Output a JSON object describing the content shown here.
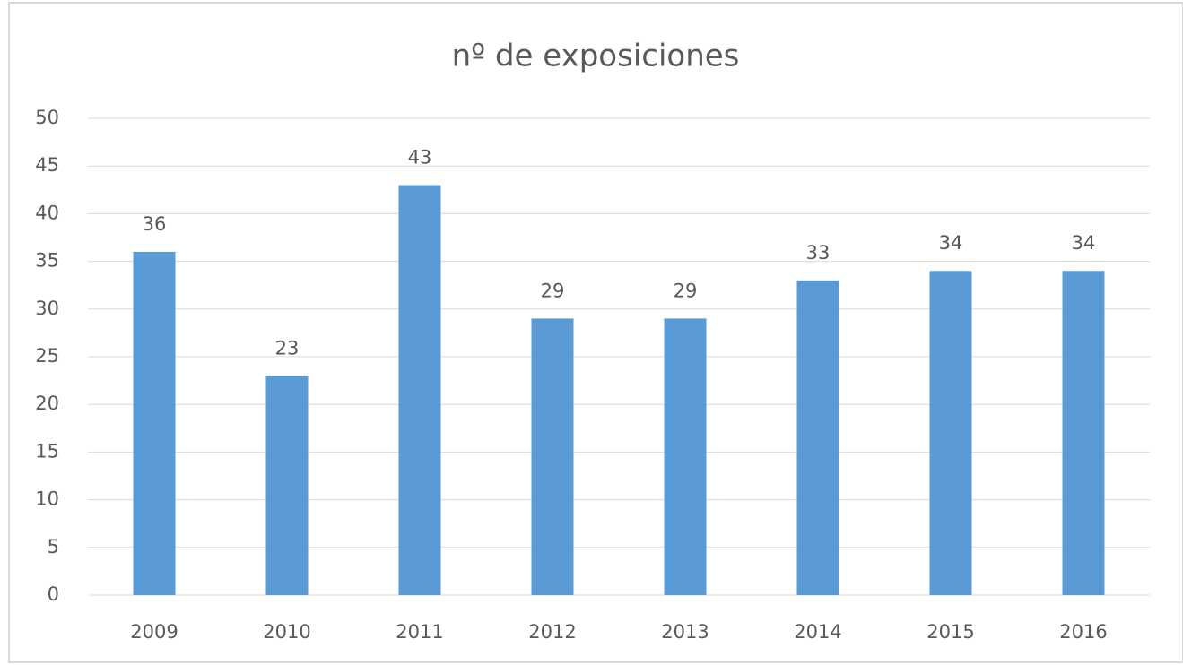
{
  "chart_data": {
    "type": "bar",
    "title": "nº de exposiciones",
    "categories": [
      "2009",
      "2010",
      "2011",
      "2012",
      "2013",
      "2014",
      "2015",
      "2016"
    ],
    "values": [
      36,
      23,
      43,
      29,
      29,
      33,
      34,
      34
    ],
    "color": "#5b9bd5",
    "ylim": [
      0,
      50
    ],
    "yticks": [
      0,
      5,
      10,
      15,
      20,
      25,
      30,
      35,
      40,
      45,
      50
    ],
    "grid": true,
    "data_labels": true
  }
}
